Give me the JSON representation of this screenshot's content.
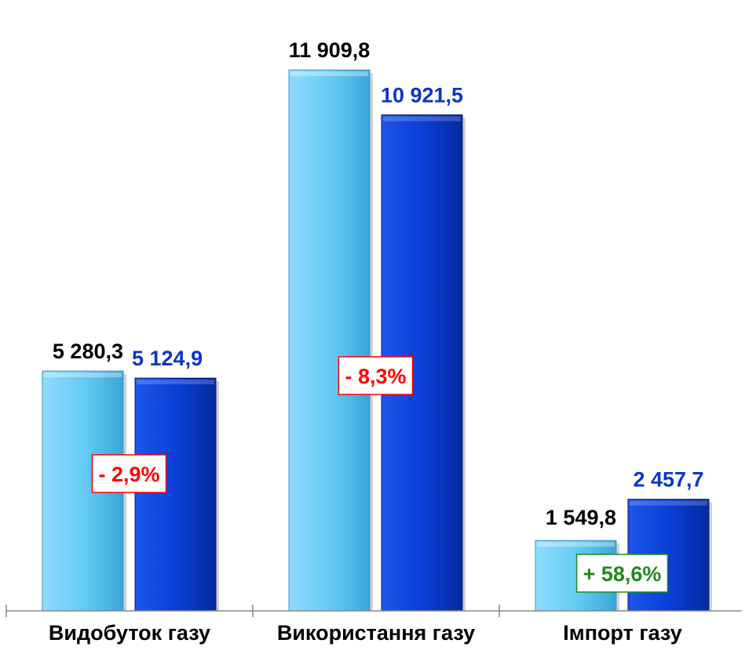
{
  "chart_data": {
    "type": "bar",
    "categories": [
      "Видобуток газу",
      "Використання газу",
      "Імпорт газу"
    ],
    "series": [
      {
        "values": [
          5280.3,
          11909.8,
          1549.8
        ],
        "labels": [
          "5 280,3",
          "11 909,8",
          "1 549,8"
        ],
        "color": "#66ccf5",
        "label_color": "#000000"
      },
      {
        "values": [
          5124.9,
          10921.5,
          2457.7
        ],
        "labels": [
          "5 124,9",
          "10 921,5",
          "2 457,7"
        ],
        "color": "#0a3fd6",
        "label_color": "#0a36c4"
      }
    ],
    "changes": [
      {
        "label": "- 2,9%",
        "color": "#ff0000"
      },
      {
        "label": "- 8,3%",
        "color": "#ff0000"
      },
      {
        "label": "+ 58,6%",
        "color": "#1e8a1e"
      }
    ],
    "ylim": [
      0,
      12500
    ],
    "grid": false,
    "legend": "none"
  }
}
